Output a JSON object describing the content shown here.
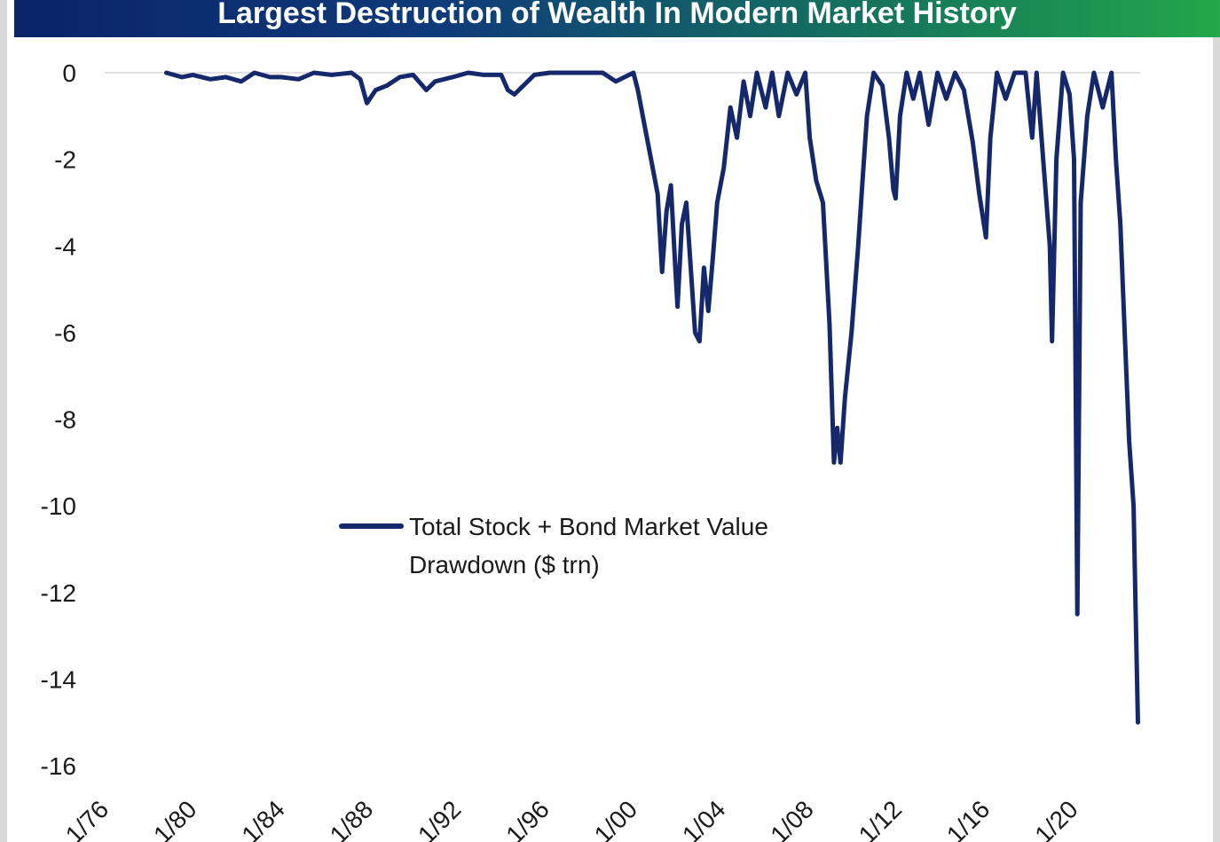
{
  "chart_data": {
    "type": "line",
    "title": "Largest Destruction of Wealth In Modern Market History",
    "xlabel": "",
    "ylabel": "",
    "ylim": [
      -16,
      0
    ],
    "yticks": [
      0,
      -2,
      -4,
      -6,
      -8,
      -10,
      -12,
      -14,
      -16
    ],
    "xlim": [
      1976,
      2023
    ],
    "xticks": [
      {
        "label": "1/76",
        "value": 1976
      },
      {
        "label": "1/80",
        "value": 1980
      },
      {
        "label": "1/84",
        "value": 1984
      },
      {
        "label": "1/88",
        "value": 1988
      },
      {
        "label": "1/92",
        "value": 1992
      },
      {
        "label": "1/96",
        "value": 1996
      },
      {
        "label": "1/00",
        "value": 2000
      },
      {
        "label": "1/04",
        "value": 2004
      },
      {
        "label": "1/08",
        "value": 2008
      },
      {
        "label": "1/12",
        "value": 2012
      },
      {
        "label": "1/16",
        "value": 2016
      },
      {
        "label": "1/20",
        "value": 2020
      }
    ],
    "grid": false,
    "legend_position": "center-left",
    "series": [
      {
        "name": "Total Stock + Bond Market Value Drawdown ($ trn)",
        "color": "#14286b",
        "points": [
          [
            1978.8,
            0
          ],
          [
            1979.5,
            -0.1
          ],
          [
            1980.0,
            -0.05
          ],
          [
            1980.8,
            -0.15
          ],
          [
            1981.5,
            -0.1
          ],
          [
            1982.2,
            -0.2
          ],
          [
            1982.8,
            0
          ],
          [
            1983.5,
            -0.1
          ],
          [
            1984.0,
            -0.1
          ],
          [
            1984.8,
            -0.15
          ],
          [
            1985.5,
            0
          ],
          [
            1986.3,
            -0.05
          ],
          [
            1987.2,
            0
          ],
          [
            1987.6,
            -0.15
          ],
          [
            1987.9,
            -0.7
          ],
          [
            1988.3,
            -0.4
          ],
          [
            1988.8,
            -0.3
          ],
          [
            1989.4,
            -0.1
          ],
          [
            1990.0,
            -0.05
          ],
          [
            1990.6,
            -0.4
          ],
          [
            1991.0,
            -0.2
          ],
          [
            1991.8,
            -0.1
          ],
          [
            1992.5,
            0
          ],
          [
            1993.2,
            -0.05
          ],
          [
            1994.0,
            -0.05
          ],
          [
            1994.3,
            -0.4
          ],
          [
            1994.6,
            -0.5
          ],
          [
            1995.0,
            -0.3
          ],
          [
            1995.5,
            -0.05
          ],
          [
            1996.2,
            0
          ],
          [
            1997.0,
            0
          ],
          [
            1997.8,
            0
          ],
          [
            1998.6,
            0
          ],
          [
            1999.2,
            -0.2
          ],
          [
            1999.6,
            -0.1
          ],
          [
            2000.0,
            0
          ],
          [
            2000.2,
            -0.4
          ],
          [
            2000.5,
            -1.2
          ],
          [
            2000.8,
            -2.0
          ],
          [
            2001.1,
            -2.8
          ],
          [
            2001.3,
            -4.6
          ],
          [
            2001.5,
            -3.2
          ],
          [
            2001.7,
            -2.6
          ],
          [
            2001.9,
            -4.5
          ],
          [
            2002.0,
            -5.4
          ],
          [
            2002.2,
            -3.5
          ],
          [
            2002.4,
            -3.0
          ],
          [
            2002.6,
            -4.5
          ],
          [
            2002.8,
            -6.0
          ],
          [
            2003.0,
            -6.2
          ],
          [
            2003.2,
            -4.5
          ],
          [
            2003.4,
            -5.5
          ],
          [
            2003.6,
            -4.3
          ],
          [
            2003.8,
            -3.0
          ],
          [
            2004.1,
            -2.2
          ],
          [
            2004.4,
            -0.8
          ],
          [
            2004.7,
            -1.5
          ],
          [
            2005.0,
            -0.2
          ],
          [
            2005.3,
            -1.0
          ],
          [
            2005.6,
            0
          ],
          [
            2006.0,
            -0.8
          ],
          [
            2006.3,
            0
          ],
          [
            2006.6,
            -1.0
          ],
          [
            2007.0,
            0
          ],
          [
            2007.4,
            -0.5
          ],
          [
            2007.8,
            0
          ],
          [
            2008.0,
            -1.5
          ],
          [
            2008.3,
            -2.5
          ],
          [
            2008.6,
            -3.0
          ],
          [
            2008.9,
            -5.8
          ],
          [
            2009.1,
            -9.0
          ],
          [
            2009.25,
            -8.2
          ],
          [
            2009.4,
            -9.0
          ],
          [
            2009.6,
            -7.5
          ],
          [
            2009.9,
            -6.0
          ],
          [
            2010.2,
            -4.0
          ],
          [
            2010.4,
            -2.5
          ],
          [
            2010.6,
            -1.0
          ],
          [
            2010.9,
            0
          ],
          [
            2011.3,
            -0.3
          ],
          [
            2011.6,
            -1.5
          ],
          [
            2011.8,
            -2.7
          ],
          [
            2011.9,
            -2.9
          ],
          [
            2012.1,
            -1.0
          ],
          [
            2012.4,
            0
          ],
          [
            2012.7,
            -0.6
          ],
          [
            2013.0,
            0
          ],
          [
            2013.4,
            -1.2
          ],
          [
            2013.8,
            0
          ],
          [
            2014.2,
            -0.6
          ],
          [
            2014.6,
            0
          ],
          [
            2015.0,
            -0.4
          ],
          [
            2015.4,
            -1.6
          ],
          [
            2015.7,
            -2.8
          ],
          [
            2016.0,
            -3.8
          ],
          [
            2016.2,
            -1.5
          ],
          [
            2016.5,
            0
          ],
          [
            2016.9,
            -0.6
          ],
          [
            2017.3,
            0
          ],
          [
            2017.8,
            0
          ],
          [
            2018.1,
            -1.5
          ],
          [
            2018.3,
            0
          ],
          [
            2018.6,
            -2.0
          ],
          [
            2018.9,
            -4.0
          ],
          [
            2019.0,
            -6.2
          ],
          [
            2019.2,
            -2.0
          ],
          [
            2019.5,
            0
          ],
          [
            2019.8,
            -0.5
          ],
          [
            2020.0,
            -2.0
          ],
          [
            2020.15,
            -12.5
          ],
          [
            2020.3,
            -3.0
          ],
          [
            2020.6,
            -1.0
          ],
          [
            2020.9,
            0
          ],
          [
            2021.3,
            -0.8
          ],
          [
            2021.7,
            0
          ],
          [
            2021.9,
            -2.0
          ],
          [
            2022.1,
            -3.5
          ],
          [
            2022.3,
            -6.0
          ],
          [
            2022.5,
            -8.5
          ],
          [
            2022.7,
            -10.0
          ],
          [
            2022.8,
            -12.5
          ],
          [
            2022.9,
            -15.0
          ]
        ]
      }
    ]
  }
}
